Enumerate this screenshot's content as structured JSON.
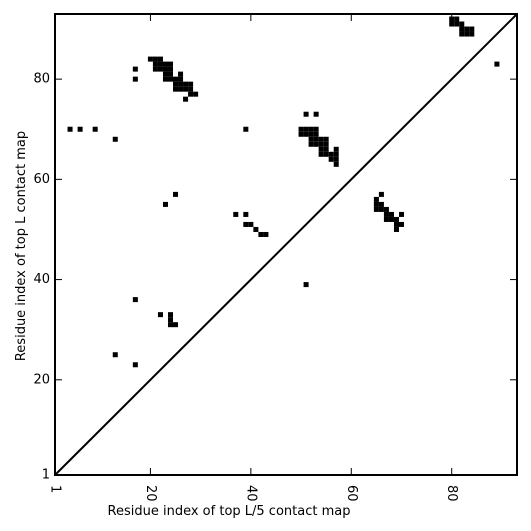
{
  "chart_data": {
    "type": "heatmap",
    "title": "",
    "xlabel": "Residue index of top L/5 contact map",
    "ylabel": "Residue index of top L contact map",
    "xlim": [
      1,
      93
    ],
    "ylim": [
      1,
      93
    ],
    "x_ticks": [
      "1",
      "20",
      "40",
      "60",
      "80"
    ],
    "y_ticks": [
      "1",
      "20",
      "40",
      "60",
      "80"
    ],
    "x_tick_values": [
      1,
      20,
      40,
      60,
      80
    ],
    "y_tick_values": [
      1,
      20,
      40,
      60,
      80
    ],
    "x_tick_rotation": -90,
    "diagonal_line": true,
    "grid": false,
    "colors": {
      "contact": "#000000",
      "background": "#ffffff"
    },
    "contacts": [
      [
        80,
        92
      ],
      [
        81,
        92
      ],
      [
        80,
        91
      ],
      [
        81,
        91
      ],
      [
        82,
        91
      ],
      [
        82,
        90
      ],
      [
        83,
        90
      ],
      [
        84,
        90
      ],
      [
        82,
        89
      ],
      [
        83,
        89
      ],
      [
        84,
        89
      ],
      [
        89,
        83
      ],
      [
        17,
        82
      ],
      [
        17,
        80
      ],
      [
        20,
        84
      ],
      [
        21,
        84
      ],
      [
        22,
        84
      ],
      [
        21,
        83
      ],
      [
        22,
        83
      ],
      [
        23,
        83
      ],
      [
        24,
        83
      ],
      [
        21,
        82
      ],
      [
        22,
        82
      ],
      [
        23,
        82
      ],
      [
        24,
        82
      ],
      [
        23,
        81
      ],
      [
        24,
        81
      ],
      [
        26,
        81
      ],
      [
        23,
        80
      ],
      [
        24,
        80
      ],
      [
        25,
        80
      ],
      [
        26,
        80
      ],
      [
        25,
        79
      ],
      [
        26,
        79
      ],
      [
        27,
        79
      ],
      [
        28,
        79
      ],
      [
        25,
        78
      ],
      [
        26,
        78
      ],
      [
        27,
        78
      ],
      [
        28,
        78
      ],
      [
        28,
        77
      ],
      [
        29,
        77
      ],
      [
        27,
        76
      ],
      [
        4,
        70
      ],
      [
        6,
        70
      ],
      [
        9,
        70
      ],
      [
        39,
        70
      ],
      [
        13,
        68
      ],
      [
        51,
        73
      ],
      [
        53,
        73
      ],
      [
        50,
        70
      ],
      [
        51,
        70
      ],
      [
        52,
        70
      ],
      [
        53,
        70
      ],
      [
        50,
        69
      ],
      [
        51,
        69
      ],
      [
        52,
        69
      ],
      [
        53,
        69
      ],
      [
        52,
        68
      ],
      [
        53,
        68
      ],
      [
        54,
        68
      ],
      [
        55,
        68
      ],
      [
        52,
        67
      ],
      [
        53,
        67
      ],
      [
        54,
        67
      ],
      [
        55,
        67
      ],
      [
        54,
        66
      ],
      [
        55,
        66
      ],
      [
        57,
        66
      ],
      [
        54,
        65
      ],
      [
        55,
        65
      ],
      [
        56,
        65
      ],
      [
        57,
        65
      ],
      [
        56,
        64
      ],
      [
        57,
        64
      ],
      [
        57,
        63
      ],
      [
        25,
        57
      ],
      [
        23,
        55
      ],
      [
        37,
        53
      ],
      [
        39,
        53
      ],
      [
        39,
        51
      ],
      [
        40,
        51
      ],
      [
        41,
        50
      ],
      [
        42,
        49
      ],
      [
        43,
        49
      ],
      [
        66,
        57
      ],
      [
        65,
        56
      ],
      [
        65,
        55
      ],
      [
        66,
        55
      ],
      [
        65,
        54
      ],
      [
        66,
        54
      ],
      [
        67,
        54
      ],
      [
        67,
        53
      ],
      [
        68,
        53
      ],
      [
        70,
        53
      ],
      [
        67,
        52
      ],
      [
        68,
        52
      ],
      [
        69,
        52
      ],
      [
        69,
        51
      ],
      [
        70,
        51
      ],
      [
        69,
        50
      ],
      [
        51,
        39
      ],
      [
        17,
        36
      ],
      [
        22,
        33
      ],
      [
        24,
        33
      ],
      [
        24,
        32
      ],
      [
        24,
        31
      ],
      [
        25,
        31
      ],
      [
        13,
        25
      ],
      [
        17,
        23
      ]
    ]
  }
}
